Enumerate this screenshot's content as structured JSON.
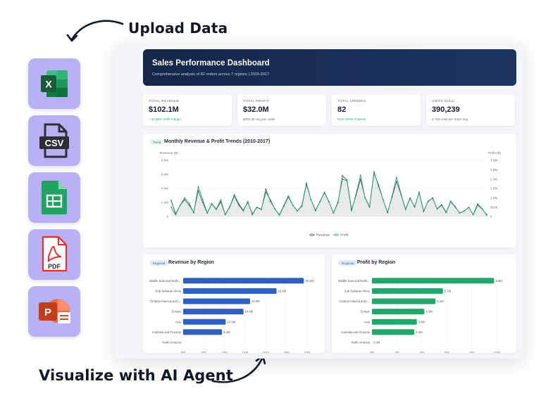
{
  "headings": {
    "upload": "Upload Data",
    "visualize": "Visualize with AI Agent"
  },
  "file_types": [
    {
      "name": "excel",
      "glyph": "X",
      "color": "#1e7a45"
    },
    {
      "name": "csv",
      "glyph": "CSV",
      "color": "#2b2f36"
    },
    {
      "name": "google-sheets",
      "glyph": "",
      "color": "#1fa463"
    },
    {
      "name": "pdf",
      "glyph": "PDF",
      "color": "#e2322a"
    },
    {
      "name": "powerpoint",
      "glyph": "P",
      "color": "#d24726"
    }
  ],
  "dashboard": {
    "title": "Sales Performance Dashboard",
    "subtitle": "Comprehensive analysis of 82 orders across 7 regions | 2010-2017",
    "kpis": [
      {
        "label": "TOTAL REVENUE",
        "value": "$102.1M",
        "note": "↑ 31.36% profit margin",
        "note_positive": true
      },
      {
        "label": "TOTAL PROFIT",
        "value": "$32.0M",
        "note": "$390.3K avg per order",
        "note_positive": false
      },
      {
        "label": "TOTAL ORDERS",
        "value": "82",
        "note": "51% online channel",
        "note_positive": true
      },
      {
        "label": "UNITS SOLD",
        "value": "390,239",
        "note": "4,759 units per order avg",
        "note_positive": false
      }
    ],
    "trend_card": {
      "pill": "Trend",
      "title": "Monthly Revenue & Profit Trends (2010-2017)",
      "left_axis_label": "Revenue ($)",
      "right_axis_label": "Profit ($)",
      "legend": [
        "Revenue",
        "Profit"
      ]
    },
    "revenue_card": {
      "pill": "Regional",
      "title": "Revenue by Region"
    },
    "profit_card": {
      "pill": "Regional",
      "title": "Profit by Region"
    }
  },
  "colors": {
    "accent_dark": "#15264a",
    "revenue_bar": "#2f5fc2",
    "profit_bar": "#22a76a",
    "upload_tile": "#b9b1f5"
  },
  "chart_data": [
    {
      "type": "line",
      "title": "Monthly Revenue & Profit Trends (2010-2017)",
      "ylabel": "Revenue ($)",
      "y2label": "Profit ($)",
      "ylim": [
        0,
        8
      ],
      "y2lim": [
        0,
        3
      ],
      "y_ticks": [
        "0",
        "2.0M",
        "4.0M",
        "6.0M",
        "8.0M"
      ],
      "y2_ticks": [
        "0",
        "500K",
        "1.0M",
        "1.5M",
        "2.0M",
        "2.5M",
        "3.0M"
      ],
      "legend_position": "bottom-center",
      "series": [
        {
          "name": "Revenue",
          "color": "#4b5563",
          "values": [
            2.3,
            0.4,
            1.6,
            2.4,
            1.6,
            0.6,
            3.7,
            2.0,
            0.5,
            1.8,
            1.0,
            2.1,
            0.3,
            1.4,
            3.1,
            1.8,
            0.9,
            2.0,
            0.4,
            1.3,
            1.0,
            3.9,
            2.2,
            1.1,
            0.2,
            1.5,
            2.8,
            1.6,
            0.8,
            1.5,
            4.6,
            2.4,
            0.9,
            2.1,
            3.4,
            2.1,
            0.5,
            2.0,
            5.8,
            5.2,
            1.0,
            3.0,
            5.3,
            2.7,
            1.4,
            6.2,
            4.5,
            2.4,
            0.6,
            2.8,
            5.0,
            3.1,
            1.0,
            2.6,
            1.4,
            3.4,
            0.7,
            2.2,
            2.6,
            1.1,
            1.7,
            0.6,
            2.2,
            1.4,
            0.5,
            0.8,
            1.3,
            0.3,
            1.8,
            1.1,
            0.2
          ]
        },
        {
          "name": "Profit",
          "color": "#22a76a",
          "values": [
            0.5,
            0.1,
            0.6,
            1.0,
            0.7,
            0.2,
            1.6,
            0.9,
            0.2,
            0.7,
            0.4,
            0.9,
            0.1,
            0.5,
            1.1,
            0.6,
            0.3,
            0.8,
            0.1,
            0.5,
            0.4,
            1.3,
            0.9,
            0.4,
            0.1,
            0.6,
            1.1,
            0.6,
            0.3,
            0.6,
            1.8,
            0.9,
            0.3,
            0.8,
            1.3,
            0.8,
            0.2,
            0.8,
            2.0,
            1.9,
            0.3,
            1.2,
            2.2,
            1.0,
            0.5,
            2.4,
            1.6,
            0.9,
            0.2,
            1.1,
            2.1,
            1.2,
            0.4,
            1.0,
            0.5,
            1.3,
            0.3,
            0.8,
            1.0,
            0.4,
            0.6,
            0.2,
            0.8,
            0.5,
            0.2,
            0.3,
            0.5,
            0.1,
            0.6,
            0.4,
            0.1
          ]
        }
      ]
    },
    {
      "type": "bar",
      "orientation": "horizontal",
      "title": "Revenue by Region",
      "categories": [
        "Middle East and North...",
        "Sub-Saharan Africa",
        "Central America and t...",
        "Europe",
        "Asia",
        "Australia and Oceania",
        "North America"
      ],
      "values": [
        29.2,
        22.6,
        16.2,
        14.6,
        10.3,
        9.4,
        0
      ],
      "value_labels": [
        "29.2M",
        "22.6M",
        "16.2M",
        "14.6M",
        "10.3M",
        "9.4M",
        ""
      ],
      "xlim": [
        0,
        30
      ],
      "x_ticks": [
        "0M",
        "5M",
        "10M",
        "15M",
        "20M",
        "25M",
        "30M"
      ],
      "color": "#2f5fc2"
    },
    {
      "type": "bar",
      "orientation": "horizontal",
      "title": "Profit by Region",
      "categories": [
        "Middle East and North...",
        "Sub-Saharan Africa",
        "Central America and t...",
        "Europe",
        "Asia",
        "Australia and Oceania",
        "North America"
      ],
      "values": [
        9.8,
        5.7,
        5.1,
        4.2,
        3.6,
        3.4,
        0.0
      ],
      "value_labels": [
        "9.8M",
        "5.7M",
        "5.1M",
        "4.2M",
        "3.6M",
        "3.4M",
        "0.0M"
      ],
      "xlim": [
        0,
        10
      ],
      "x_ticks": [
        "0M",
        "2M",
        "4M",
        "6M",
        "8M",
        "10M"
      ],
      "color": "#22a76a"
    }
  ]
}
